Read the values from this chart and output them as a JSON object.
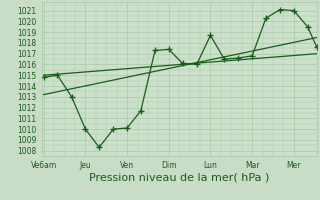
{
  "xlabel": "Pression niveau de la mer( hPa )",
  "bg_color": "#c8dcc8",
  "plot_bg_color": "#cce0cc",
  "line_color": "#1a5c1a",
  "grid_color": "#a8c8a8",
  "tick_label_color": "#1a5c1a",
  "xlabel_color": "#1a5c1a",
  "ylim": [
    1007.5,
    1021.8
  ],
  "yticks": [
    1008,
    1009,
    1010,
    1011,
    1012,
    1013,
    1014,
    1015,
    1016,
    1017,
    1018,
    1019,
    1020,
    1021
  ],
  "xlim": [
    -0.05,
    6.55
  ],
  "xtick_labels": [
    "Ve6am",
    "Jeu",
    "Ven",
    "Dim",
    "Lun",
    "Mar",
    "Mer"
  ],
  "xtick_positions": [
    0,
    1,
    2,
    3,
    4,
    5,
    6
  ],
  "series1_x": [
    0.0,
    0.33,
    0.67,
    1.0,
    1.33,
    1.67,
    2.0,
    2.33,
    2.67,
    3.0,
    3.33,
    3.67,
    4.0,
    4.33,
    4.67,
    5.0,
    5.33,
    5.67,
    6.0,
    6.33,
    6.55
  ],
  "series1_y": [
    1014.8,
    1015.0,
    1013.0,
    1010.0,
    1008.3,
    1010.0,
    1010.1,
    1011.7,
    1017.3,
    1017.4,
    1016.1,
    1016.0,
    1018.7,
    1016.5,
    1016.6,
    1016.8,
    1020.3,
    1021.1,
    1021.0,
    1019.5,
    1017.6
  ],
  "trend1_x": [
    0.0,
    6.55
  ],
  "trend1_y": [
    1015.0,
    1017.0
  ],
  "trend2_x": [
    0.0,
    6.55
  ],
  "trend2_y": [
    1013.2,
    1018.5
  ],
  "marker": "+",
  "markersize": 4,
  "markeredgewidth": 1.0,
  "linewidth": 0.9,
  "fontsize_ticks": 5.5,
  "fontsize_xlabel": 8
}
